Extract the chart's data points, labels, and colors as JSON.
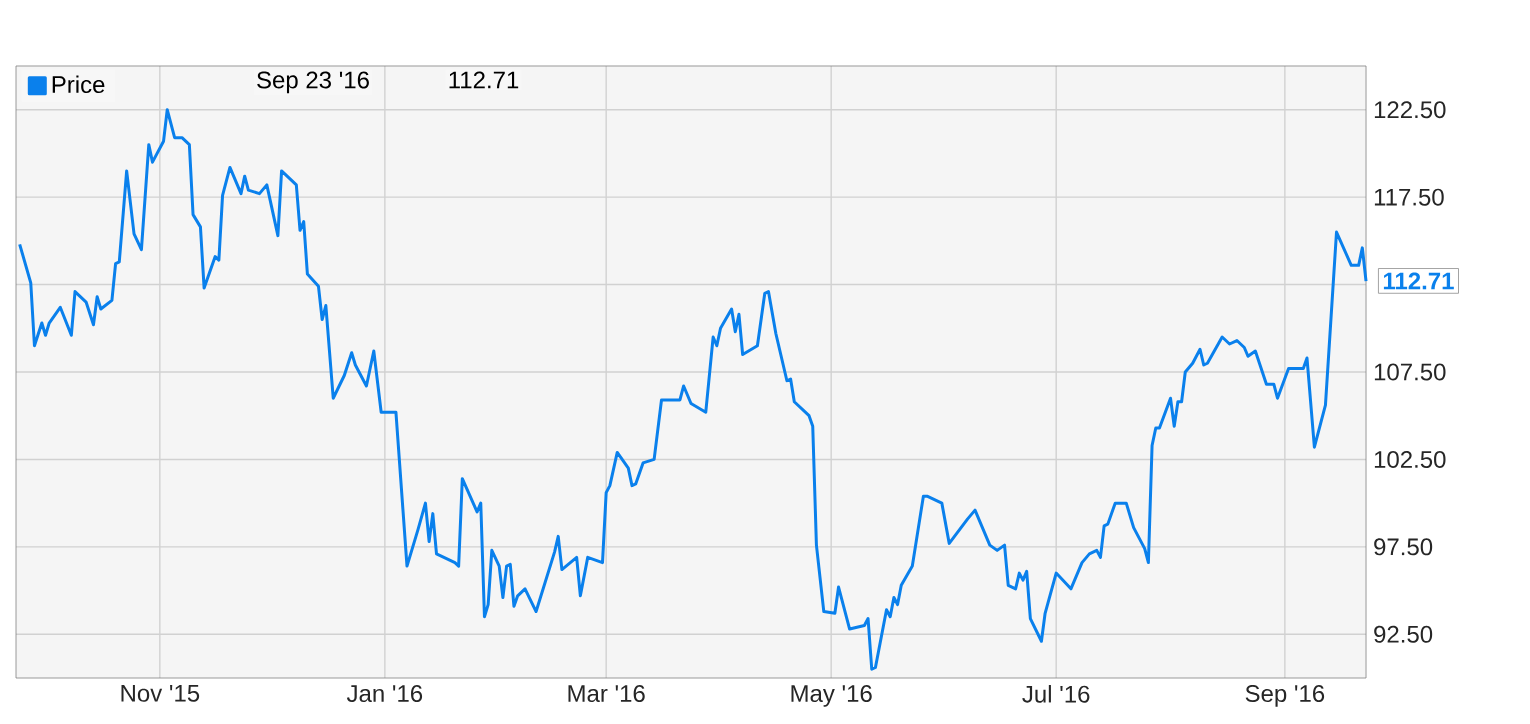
{
  "chart_data": {
    "type": "line",
    "x": [
      "2015-09-24",
      "2015-09-27",
      "2015-09-28",
      "2015-09-30",
      "2015-10-01",
      "2015-10-02",
      "2015-10-05",
      "2015-10-08",
      "2015-10-09",
      "2015-10-12",
      "2015-10-14",
      "2015-10-15",
      "2015-10-16",
      "2015-10-19",
      "2015-10-20",
      "2015-10-21",
      "2015-10-23",
      "2015-10-25",
      "2015-10-27",
      "2015-10-29",
      "2015-10-30",
      "2015-11-02",
      "2015-11-03",
      "2015-11-05",
      "2015-11-07",
      "2015-11-09",
      "2015-11-10",
      "2015-11-12",
      "2015-11-13",
      "2015-11-16",
      "2015-11-17",
      "2015-11-18",
      "2015-11-20",
      "2015-11-23",
      "2015-11-24",
      "2015-11-25",
      "2015-11-28",
      "2015-11-30",
      "2015-12-03",
      "2015-12-04",
      "2015-12-08",
      "2015-12-09",
      "2015-12-10",
      "2015-12-11",
      "2015-12-14",
      "2015-12-15",
      "2015-12-16",
      "2015-12-18",
      "2015-12-21",
      "2015-12-23",
      "2015-12-24",
      "2015-12-27",
      "2015-12-29",
      "2015-12-31",
      "2016-01-04",
      "2016-01-07",
      "2016-01-10",
      "2016-01-12",
      "2016-01-13",
      "2016-01-14",
      "2016-01-15",
      "2016-01-20",
      "2016-01-21",
      "2016-01-22",
      "2016-01-26",
      "2016-01-27",
      "2016-01-28",
      "2016-01-29",
      "2016-01-30",
      "2016-02-01",
      "2016-02-02",
      "2016-02-03",
      "2016-02-04",
      "2016-02-05",
      "2016-02-06",
      "2016-02-08",
      "2016-02-11",
      "2016-02-16",
      "2016-02-17",
      "2016-02-18",
      "2016-02-22",
      "2016-02-23",
      "2016-02-25",
      "2016-02-29",
      "2016-03-01",
      "2016-03-02",
      "2016-03-04",
      "2016-03-07",
      "2016-03-08",
      "2016-03-09",
      "2016-03-11",
      "2016-03-14",
      "2016-03-16",
      "2016-03-21",
      "2016-03-22",
      "2016-03-24",
      "2016-03-28",
      "2016-03-30",
      "2016-03-31",
      "2016-04-01",
      "2016-04-04",
      "2016-04-05",
      "2016-04-06",
      "2016-04-07",
      "2016-04-11",
      "2016-04-13",
      "2016-04-14",
      "2016-04-16",
      "2016-04-19",
      "2016-04-20",
      "2016-04-21",
      "2016-04-25",
      "2016-04-26",
      "2016-04-27",
      "2016-04-29",
      "2016-05-02",
      "2016-05-03",
      "2016-05-06",
      "2016-05-10",
      "2016-05-11",
      "2016-05-12",
      "2016-05-13",
      "2016-05-16",
      "2016-05-17",
      "2016-05-18",
      "2016-05-19",
      "2016-05-20",
      "2016-05-23",
      "2016-05-26",
      "2016-05-27",
      "2016-05-31",
      "2016-06-02",
      "2016-06-07",
      "2016-06-09",
      "2016-06-11",
      "2016-06-13",
      "2016-06-15",
      "2016-06-17",
      "2016-06-18",
      "2016-06-20",
      "2016-06-21",
      "2016-06-22",
      "2016-06-23",
      "2016-06-24",
      "2016-06-27",
      "2016-06-28",
      "2016-07-01",
      "2016-07-05",
      "2016-07-08",
      "2016-07-10",
      "2016-07-12",
      "2016-07-13",
      "2016-07-14",
      "2016-07-15",
      "2016-07-17",
      "2016-07-20",
      "2016-07-22",
      "2016-07-25",
      "2016-07-26",
      "2016-07-27",
      "2016-07-28",
      "2016-07-29",
      "2016-08-01",
      "2016-08-02",
      "2016-08-03",
      "2016-08-04",
      "2016-08-05",
      "2016-08-07",
      "2016-08-09",
      "2016-08-10",
      "2016-08-11",
      "2016-08-15",
      "2016-08-17",
      "2016-08-19",
      "2016-08-21",
      "2016-08-22",
      "2016-08-24",
      "2016-08-27",
      "2016-08-29",
      "2016-08-30",
      "2016-09-02",
      "2016-09-06",
      "2016-09-07",
      "2016-09-09",
      "2016-09-12",
      "2016-09-15",
      "2016-09-19",
      "2016-09-21",
      "2016-09-22",
      "2016-09-23"
    ],
    "series": [
      {
        "name": "Price",
        "color": "#0a80ec",
        "values": [
          114.8,
          112.6,
          109.0,
          110.3,
          109.6,
          110.3,
          111.2,
          109.6,
          112.1,
          111.5,
          110.2,
          111.8,
          111.1,
          111.6,
          113.7,
          113.8,
          119.0,
          115.4,
          114.5,
          120.5,
          119.5,
          120.7,
          122.5,
          120.9,
          120.9,
          120.5,
          116.5,
          115.8,
          112.3,
          114.1,
          113.9,
          117.6,
          119.2,
          117.7,
          118.7,
          117.9,
          117.7,
          118.2,
          115.3,
          119.0,
          118.2,
          115.6,
          116.1,
          113.1,
          112.4,
          110.5,
          111.3,
          106.0,
          107.3,
          108.6,
          107.9,
          106.7,
          108.7,
          105.2,
          105.2,
          96.4,
          98.5,
          100.0,
          97.8,
          99.4,
          97.1,
          96.6,
          96.4,
          101.4,
          99.5,
          100.0,
          93.5,
          94.2,
          97.3,
          96.4,
          94.6,
          96.4,
          96.5,
          94.1,
          94.7,
          95.1,
          93.8,
          97.2,
          98.1,
          96.2,
          96.9,
          94.7,
          96.9,
          96.6,
          100.6,
          101.0,
          102.9,
          102.0,
          101.0,
          101.1,
          102.3,
          102.5,
          105.9,
          105.9,
          106.7,
          105.7,
          105.2,
          109.5,
          109.0,
          110.0,
          111.1,
          109.8,
          110.8,
          108.5,
          109.0,
          112.0,
          112.1,
          109.7,
          107.0,
          107.1,
          105.8,
          105.0,
          104.4,
          97.6,
          93.8,
          93.7,
          95.2,
          92.8,
          93.0,
          93.4,
          90.5,
          90.6,
          93.9,
          93.5,
          94.6,
          94.2,
          95.3,
          96.4,
          100.4,
          100.4,
          100.0,
          97.7,
          99.1,
          99.6,
          98.6,
          97.6,
          97.3,
          97.6,
          95.3,
          95.1,
          96.0,
          95.6,
          96.1,
          93.4,
          92.1,
          93.7,
          96.0,
          95.1,
          96.6,
          97.1,
          97.3,
          96.9,
          98.7,
          98.8,
          100.0,
          100.0,
          98.6,
          97.4,
          96.6,
          103.3,
          104.3,
          104.3,
          106.0,
          104.4,
          105.8,
          105.8,
          107.5,
          108.0,
          108.8,
          107.9,
          108.0,
          109.5,
          109.1,
          109.3,
          108.9,
          108.4,
          108.7,
          106.8,
          106.8,
          106.0,
          107.7,
          107.7,
          108.3,
          103.2,
          105.6,
          115.5,
          113.6,
          113.6,
          114.6,
          112.7
        ]
      }
    ],
    "xlim": [
      "2015-09-23",
      "2016-09-23"
    ],
    "xticks": [
      {
        "value": "2015-11-01",
        "label": "Nov '15"
      },
      {
        "value": "2016-01-01",
        "label": "Jan '16"
      },
      {
        "value": "2016-03-01",
        "label": "Mar '16"
      },
      {
        "value": "2016-05-01",
        "label": "May '16"
      },
      {
        "value": "2016-07-01",
        "label": "Jul '16"
      },
      {
        "value": "2016-09-01",
        "label": "Sep '16"
      }
    ],
    "ylim": [
      90,
      125
    ],
    "yticks": [
      {
        "value": 92.5,
        "label": "92.50"
      },
      {
        "value": 97.5,
        "label": "97.50"
      },
      {
        "value": 102.5,
        "label": "102.50"
      },
      {
        "value": 107.5,
        "label": "107.50"
      },
      {
        "value": 112.5,
        "label": null
      },
      {
        "value": 117.5,
        "label": "117.50"
      },
      {
        "value": 122.5,
        "label": "122.50"
      }
    ],
    "grid": true,
    "legend": "top left",
    "marker": "none",
    "line_style": "solid",
    "annotations": [
      "Sep 23 '16",
      "112.71",
      {
        "text": "112.71",
        "x": "2016-09-23",
        "y": 112.71
      }
    ]
  }
}
